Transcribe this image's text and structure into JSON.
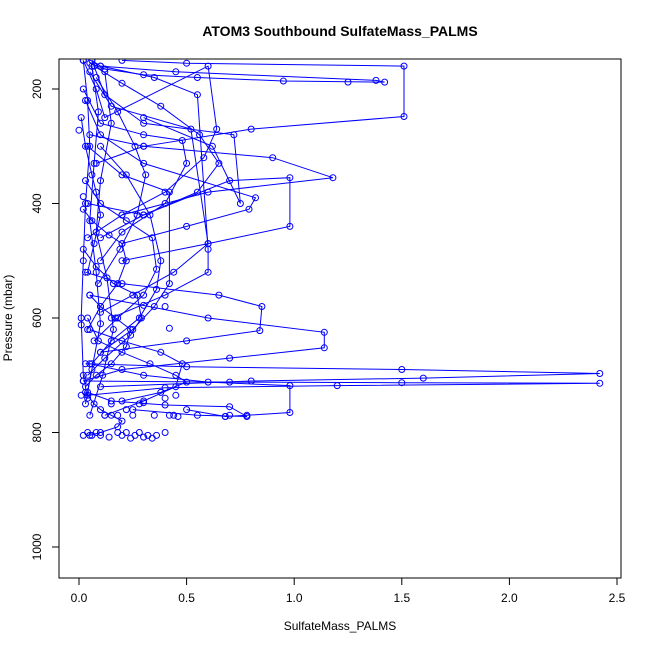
{
  "chart_data": {
    "type": "line",
    "title": "ATOM3 Southbound SulfateMass_PALMS",
    "xlabel": "SulfateMass_PALMS",
    "ylabel": "Pressure (mbar)",
    "xlim": [
      0,
      2.5
    ],
    "ylim": [
      1050,
      150
    ],
    "y_reversed": true,
    "grid": false,
    "legend": "none",
    "x_ticks": [
      0.0,
      0.5,
      1.0,
      1.5,
      2.0,
      2.5
    ],
    "x_tick_labels": [
      "0.0",
      "0.5",
      "1.0",
      "1.5",
      "2.0",
      "2.5"
    ],
    "y_ticks": [
      200,
      400,
      600,
      800,
      1000
    ],
    "y_tick_labels": [
      "200",
      "400",
      "600",
      "800",
      "1000"
    ],
    "series_color": "#0000ff",
    "series": [
      {
        "x": [
          0.06,
          0.1,
          0.45,
          1.38,
          1.42,
          0.95,
          0.55,
          0.3,
          0.12,
          0.05
        ],
        "y": [
          150,
          160,
          170,
          185,
          188,
          186,
          180,
          175,
          165,
          155
        ]
      },
      {
        "x": [
          0.2,
          0.5,
          1.51,
          1.51,
          0.8,
          0.3,
          0.08
        ],
        "y": [
          150,
          155,
          160,
          248,
          270,
          300,
          330
        ]
      },
      {
        "x": [
          0.05,
          0.3,
          0.9,
          1.18,
          0.6,
          0.2,
          0.04
        ],
        "y": [
          280,
          300,
          320,
          355,
          380,
          420,
          460
        ]
      },
      {
        "x": [
          0.04,
          0.3,
          0.7,
          0.98,
          0.98,
          0.6,
          0.2
        ],
        "y": [
          400,
          420,
          360,
          355,
          440,
          470,
          500
        ]
      },
      {
        "x": [
          0.03,
          0.2,
          0.65,
          0.85,
          0.84,
          0.5,
          0.1
        ],
        "y": [
          520,
          540,
          560,
          580,
          622,
          640,
          660
        ]
      },
      {
        "x": [
          0.05,
          0.6,
          1.14,
          1.14,
          0.7,
          0.2,
          0.02
        ],
        "y": [
          560,
          600,
          625,
          652,
          670,
          690,
          710
        ]
      },
      {
        "x": [
          0.03,
          0.5,
          1.5,
          2.42,
          1.6,
          0.8,
          0.1
        ],
        "y": [
          680,
          685,
          690,
          697,
          705,
          710,
          720
        ]
      },
      {
        "x": [
          0.02,
          0.7,
          1.5,
          2.42,
          1.2,
          0.4,
          0.04
        ],
        "y": [
          710,
          712,
          713,
          714,
          718,
          722,
          735
        ]
      },
      {
        "x": [
          0.05,
          0.3,
          0.6,
          0.98,
          0.98,
          0.78,
          0.68,
          0.5
        ],
        "y": [
          680,
          700,
          712,
          718,
          765,
          770,
          772,
          760
        ]
      },
      {
        "x": [
          0.04,
          0.15,
          0.4,
          0.7,
          0.78,
          0.55,
          0.25
        ],
        "y": [
          730,
          745,
          752,
          755,
          772,
          770,
          760
        ]
      },
      {
        "x": [
          0.02,
          0.08,
          0.12,
          0.6,
          0.64,
          0.58,
          0.4,
          0.2
        ],
        "y": [
          150,
          200,
          250,
          160,
          270,
          320,
          380,
          420
        ]
      },
      {
        "x": [
          0.1,
          0.35,
          0.55,
          0.6,
          0.6,
          0.4,
          0.15
        ],
        "y": [
          160,
          180,
          210,
          480,
          520,
          560,
          600
        ]
      },
      {
        "x": [
          0.02,
          0.1,
          0.3,
          0.48,
          0.5,
          0.4,
          0.2,
          0.1
        ],
        "y": [
          200,
          260,
          280,
          290,
          330,
          400,
          450,
          500
        ]
      },
      {
        "x": [
          0.04,
          0.2,
          0.42,
          0.42,
          0.35,
          0.25,
          0.1
        ],
        "y": [
          300,
          350,
          380,
          540,
          580,
          620,
          660
        ]
      },
      {
        "x": [
          0.06,
          0.12,
          0.3,
          0.72,
          0.75,
          0.62,
          0.3
        ],
        "y": [
          150,
          210,
          260,
          280,
          400,
          300,
          250
        ]
      },
      {
        "x": [
          0.03,
          0.1,
          0.22,
          0.34,
          0.36,
          0.3,
          0.18,
          0.07
        ],
        "y": [
          360,
          400,
          430,
          460,
          515,
          560,
          600,
          640
        ]
      },
      {
        "x": [
          0.02,
          0.06,
          0.14,
          0.2,
          0.22,
          0.18,
          0.1,
          0.04
        ],
        "y": [
          410,
          430,
          455,
          470,
          500,
          540,
          580,
          620
        ]
      },
      {
        "x": [
          0.05,
          0.1,
          0.17,
          0.24,
          0.22,
          0.15,
          0.08,
          0.03
        ],
        "y": [
          560,
          580,
          600,
          620,
          650,
          680,
          700,
          720
        ]
      },
      {
        "x": [
          0.04,
          0.09,
          0.2,
          0.33,
          0.45,
          0.5,
          0.38,
          0.2
        ],
        "y": [
          600,
          640,
          660,
          680,
          700,
          712,
          730,
          745
        ]
      },
      {
        "x": [
          0.03,
          0.07,
          0.1,
          0.15,
          0.2,
          0.18,
          0.1,
          0.05
        ],
        "y": [
          730,
          750,
          760,
          770,
          780,
          790,
          800,
          805
        ]
      },
      {
        "x": [
          0.01,
          0.03,
          0.06,
          0.08,
          0.1,
          0.07,
          0.04
        ],
        "y": [
          250,
          300,
          350,
          380,
          420,
          470,
          520
        ]
      },
      {
        "x": [
          0.08,
          0.18,
          0.26,
          0.31,
          0.27,
          0.19,
          0.09
        ],
        "y": [
          180,
          240,
          300,
          350,
          420,
          480,
          540
        ]
      },
      {
        "x": [
          0.05,
          0.15,
          0.52,
          0.6,
          0.44,
          0.25,
          0.1
        ],
        "y": [
          170,
          230,
          270,
          470,
          520,
          560,
          590
        ]
      },
      {
        "x": [
          0.03,
          0.1,
          0.3,
          0.82,
          0.79,
          0.5,
          0.2
        ],
        "y": [
          220,
          280,
          330,
          390,
          410,
          440,
          470
        ]
      },
      {
        "x": [
          0.07,
          0.2,
          0.38,
          0.56,
          0.65,
          0.55,
          0.3,
          0.1
        ],
        "y": [
          160,
          190,
          230,
          280,
          330,
          380,
          420,
          460
        ]
      },
      {
        "x": [
          0.1,
          0.22,
          0.33,
          0.38,
          0.36,
          0.28,
          0.15,
          0.06
        ],
        "y": [
          300,
          350,
          420,
          500,
          550,
          600,
          640,
          680
        ]
      },
      {
        "x": [
          0.02,
          0.08,
          0.16,
          0.27,
          0.29,
          0.24,
          0.12,
          0.04
        ],
        "y": [
          480,
          510,
          540,
          560,
          600,
          630,
          670,
          700
        ]
      },
      {
        "x": [
          0.05,
          0.2,
          0.38,
          0.48,
          0.45,
          0.3,
          0.12
        ],
        "y": [
          620,
          640,
          660,
          680,
          720,
          745,
          770
        ]
      },
      {
        "x": [
          0.02,
          0.04,
          0.05,
          0.03,
          0.02,
          0.01,
          0.02,
          0.04
        ],
        "y": [
          150,
          220,
          300,
          400,
          500,
          600,
          700,
          740
        ]
      },
      {
        "x": [
          0.06,
          0.09,
          0.07,
          0.05,
          0.08,
          0.1,
          0.06,
          0.03
        ],
        "y": [
          160,
          240,
          330,
          430,
          520,
          610,
          690,
          750
        ]
      },
      {
        "x": [
          0.12,
          0.15,
          0.1,
          0.08,
          0.13,
          0.16,
          0.11,
          0.05
        ],
        "y": [
          170,
          260,
          360,
          450,
          530,
          620,
          700,
          770
        ]
      }
    ],
    "markers": [
      {
        "x": 0.02,
        "y": 805
      },
      {
        "x": 0.04,
        "y": 800
      },
      {
        "x": 0.06,
        "y": 805
      },
      {
        "x": 0.08,
        "y": 800
      },
      {
        "x": 0.1,
        "y": 805
      },
      {
        "x": 0.18,
        "y": 800
      },
      {
        "x": 0.2,
        "y": 805
      },
      {
        "x": 0.22,
        "y": 800
      },
      {
        "x": 0.26,
        "y": 805
      },
      {
        "x": 0.28,
        "y": 800
      },
      {
        "x": 0.3,
        "y": 808
      },
      {
        "x": 0.32,
        "y": 805
      },
      {
        "x": 0.34,
        "y": 810
      },
      {
        "x": 0.36,
        "y": 805
      },
      {
        "x": 0.4,
        "y": 800
      },
      {
        "x": 0.24,
        "y": 810
      },
      {
        "x": 0.14,
        "y": 808
      },
      {
        "x": 0.42,
        "y": 770
      },
      {
        "x": 0.44,
        "y": 770
      },
      {
        "x": 0.46,
        "y": 772
      },
      {
        "x": 0.68,
        "y": 772
      },
      {
        "x": 0.7,
        "y": 770
      },
      {
        "x": 0.15,
        "y": 750
      },
      {
        "x": 0.28,
        "y": 750
      },
      {
        "x": 0.3,
        "y": 748
      },
      {
        "x": 0.12,
        "y": 770
      },
      {
        "x": 0.18,
        "y": 770
      },
      {
        "x": 0.22,
        "y": 760
      },
      {
        "x": 0.25,
        "y": 770
      },
      {
        "x": 0.35,
        "y": 770
      },
      {
        "x": 0.0,
        "y": 272
      },
      {
        "x": 0.01,
        "y": 735
      },
      {
        "x": 0.01,
        "y": 612
      },
      {
        "x": 0.02,
        "y": 388
      },
      {
        "x": 1.25,
        "y": 188
      },
      {
        "x": 0.4,
        "y": 740
      },
      {
        "x": 0.45,
        "y": 735
      },
      {
        "x": 0.3,
        "y": 578
      },
      {
        "x": 0.4,
        "y": 580
      },
      {
        "x": 0.42,
        "y": 618
      }
    ]
  }
}
